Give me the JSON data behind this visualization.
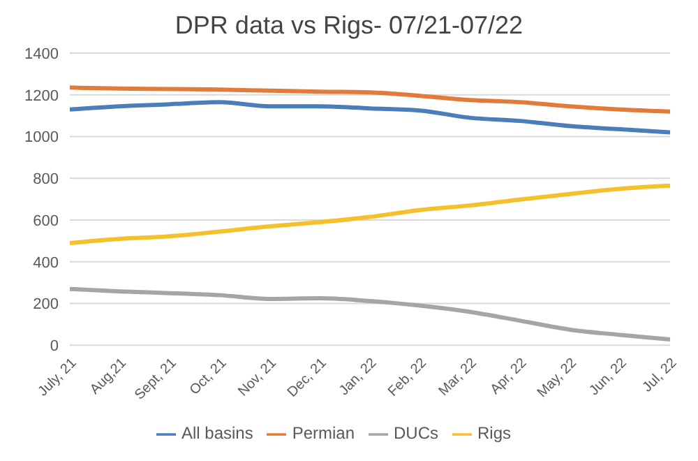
{
  "chart_data": {
    "type": "line",
    "title": "DPR data vs Rigs- 07/21-07/22",
    "categories": [
      "July, 21",
      "Aug,21",
      "Sept, 21",
      "Oct, 21",
      "Nov, 21",
      "Dec, 21",
      "Jan, 22",
      "Feb, 22",
      "Mar, 22",
      "Apr, 22",
      "May, 22",
      "Jun, 22",
      "Jul, 22"
    ],
    "series": [
      {
        "name": "All basins",
        "color": "#4a7ebb",
        "values": [
          1130,
          1145,
          1155,
          1165,
          1145,
          1145,
          1135,
          1125,
          1090,
          1075,
          1050,
          1035,
          1020
        ]
      },
      {
        "name": "Permian",
        "color": "#e07b39",
        "values": [
          1235,
          1230,
          1228,
          1225,
          1220,
          1215,
          1212,
          1195,
          1175,
          1165,
          1145,
          1130,
          1120
        ]
      },
      {
        "name": "DUCs",
        "color": "#a5a5a5",
        "values": [
          270,
          258,
          250,
          240,
          222,
          225,
          212,
          190,
          160,
          118,
          75,
          50,
          28
        ]
      },
      {
        "name": "Rigs",
        "color": "#f5c02c",
        "values": [
          490,
          510,
          522,
          545,
          570,
          590,
          615,
          648,
          670,
          698,
          725,
          750,
          765
        ]
      }
    ],
    "ylim": [
      0,
      1400
    ],
    "yticks": [
      0,
      200,
      400,
      600,
      800,
      1000,
      1200,
      1400
    ],
    "grid": "y",
    "legend": "bottom",
    "marker": "none",
    "line_style": "solid"
  }
}
